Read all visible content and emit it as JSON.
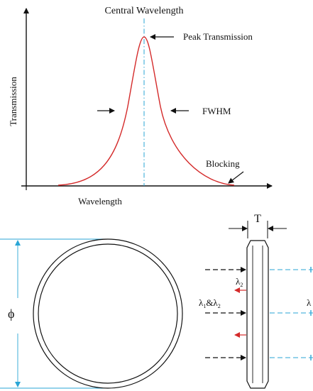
{
  "filter_plot": {
    "central_wavelength_label": "Central Wavelength",
    "peak_transmission_label": "Peak Transmission",
    "fwhm_label": "FWHM",
    "blocking_label": "Blocking",
    "y_axis_label": "Transmission",
    "x_axis_label": "Wavelength"
  },
  "filter_geometry": {
    "diameter_symbol": "ϕ",
    "thickness_symbol": "T",
    "reflected_wavelength_symbol": "λ",
    "reflected_wavelength_subscript": "2",
    "incident_wavelengths_prefix": "λ",
    "incident_wavelengths_sub1": "1",
    "incident_wavelengths_joiner": "&λ",
    "incident_wavelengths_sub2": "2",
    "transmitted_wavelength_symbol": "λ"
  },
  "colors": {
    "curve": "#d42a2a",
    "center_line": "#2aa6d6",
    "reflected_arrow": "#d42a2a",
    "transmitted_beam": "#2aa6d6",
    "diameter_guides": "#2aa6d6",
    "ink": "#111111"
  }
}
